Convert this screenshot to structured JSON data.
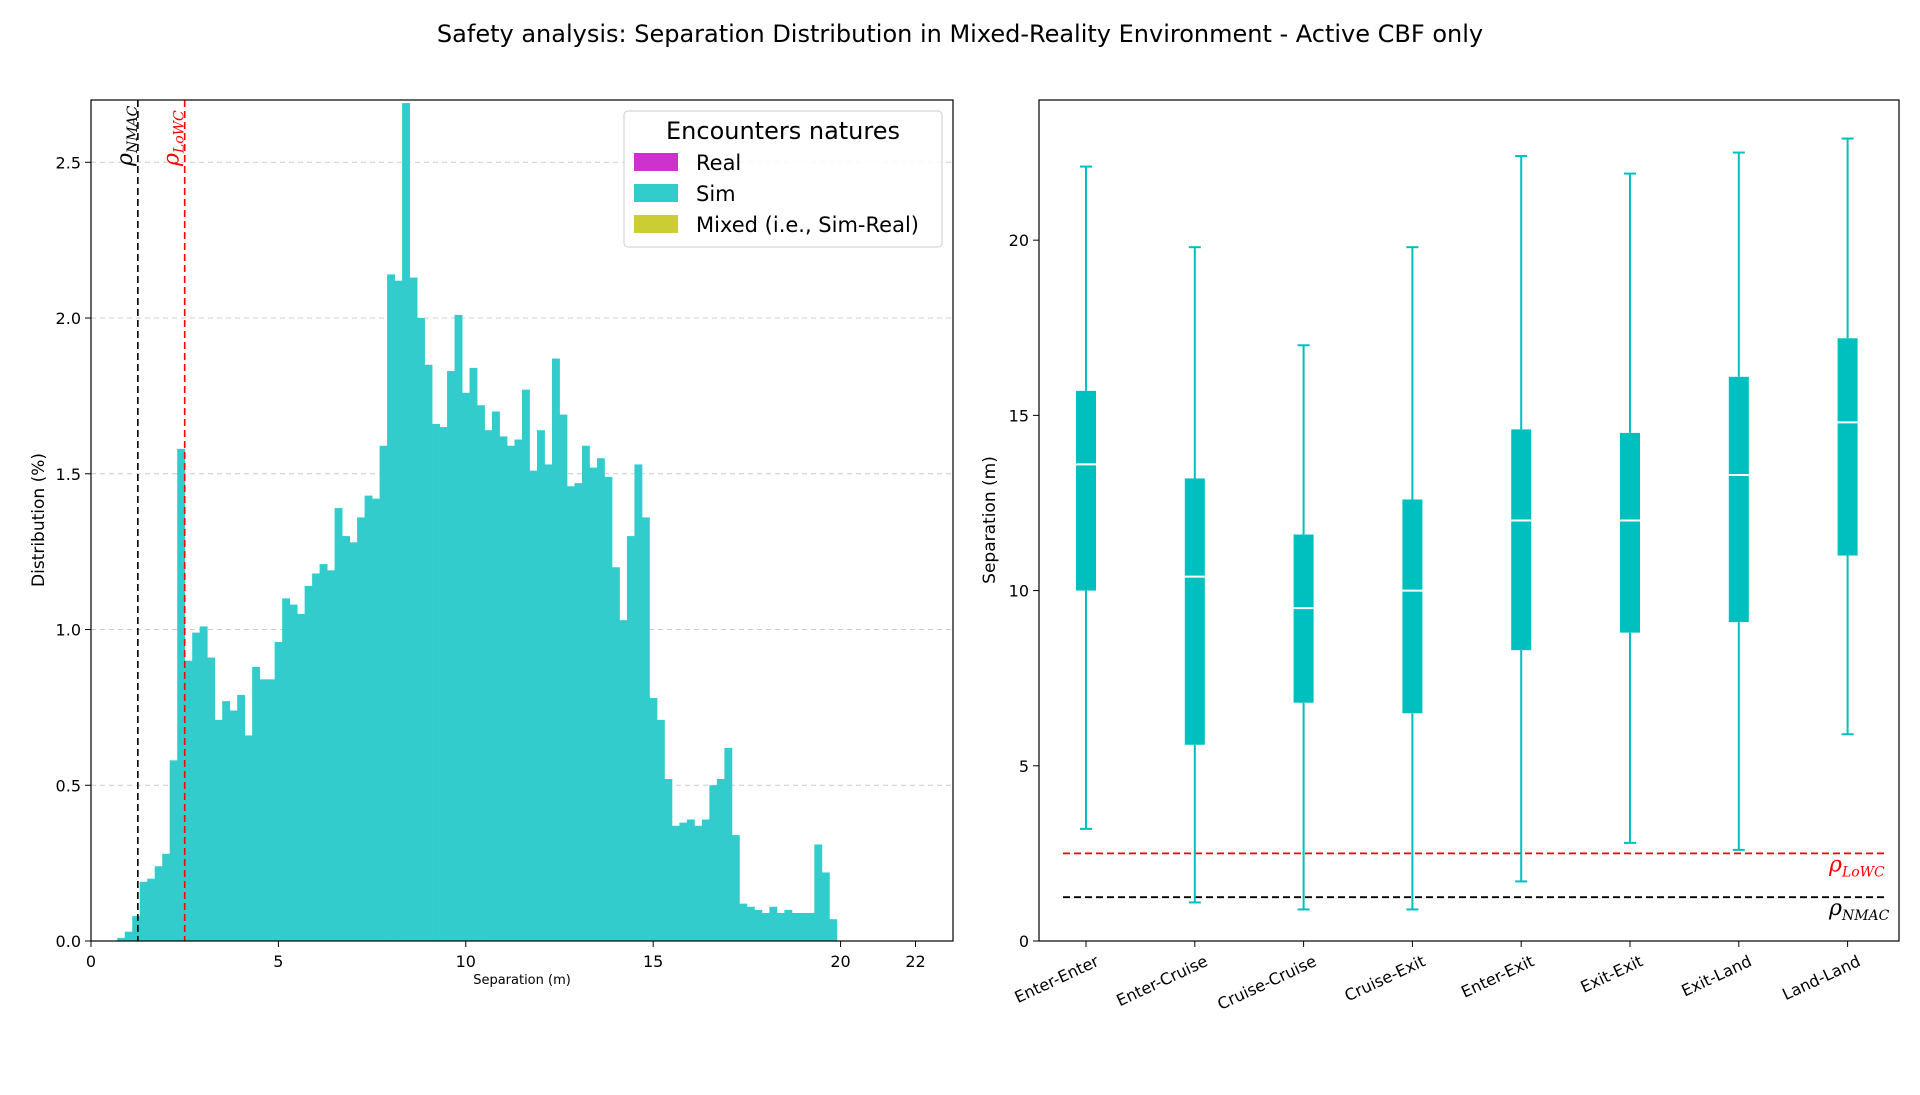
{
  "title": "Safety analysis: Separation Distribution in Mixed-Reality Environment - Active CBF only",
  "colors": {
    "real": "#cc33cc",
    "sim": "#33cccc",
    "mixed": "#cccc33",
    "box": "#00bfbf",
    "lowc": "#ff0000",
    "nmac": "#000000"
  },
  "chart_data": [
    {
      "type": "bar",
      "xlabel": "Separation (m)",
      "ylabel": "Distribution (%)",
      "xlim": [
        0,
        23
      ],
      "ylim": [
        0,
        2.7
      ],
      "xticks": [
        0,
        5,
        10,
        15,
        20,
        22
      ],
      "yticks": [
        "0.0",
        "0.5",
        "1.0",
        "1.5",
        "2.0",
        "2.5"
      ],
      "grid": "y-dashed",
      "bin_width": 0.2,
      "bin_start": 0.7,
      "values": [
        0.01,
        0.03,
        0.08,
        0.19,
        0.2,
        0.24,
        0.28,
        0.58,
        1.58,
        0.9,
        0.99,
        1.01,
        0.91,
        0.71,
        0.77,
        0.74,
        0.79,
        0.66,
        0.88,
        0.84,
        0.84,
        0.96,
        1.1,
        1.08,
        1.05,
        1.14,
        1.18,
        1.21,
        1.19,
        1.39,
        1.3,
        1.28,
        1.36,
        1.43,
        1.42,
        1.59,
        2.14,
        2.12,
        2.69,
        2.13,
        2.0,
        1.85,
        1.66,
        1.65,
        1.83,
        2.01,
        1.76,
        1.84,
        1.72,
        1.64,
        1.7,
        1.62,
        1.59,
        1.61,
        1.77,
        1.51,
        1.64,
        1.53,
        1.87,
        1.69,
        1.46,
        1.47,
        1.59,
        1.52,
        1.55,
        1.49,
        1.2,
        1.03,
        1.3,
        1.53,
        1.36,
        0.78,
        0.71,
        0.52,
        0.37,
        0.38,
        0.39,
        0.37,
        0.39,
        0.5,
        0.52,
        0.62,
        0.34,
        0.12,
        0.11,
        0.1,
        0.09,
        0.11,
        0.09,
        0.1,
        0.09,
        0.09,
        0.09,
        0.31,
        0.22,
        0.07
      ],
      "legend": {
        "title": "Encounters natures",
        "position": "top-right",
        "entries": [
          "Real",
          "Sim",
          "Mixed (i.e., Sim-Real)"
        ]
      },
      "ref_lines": [
        {
          "name": "NMAC",
          "label": "ρ",
          "sub": "NMAC",
          "x": 1.25
        },
        {
          "name": "LoWC",
          "label": "ρ",
          "sub": "LoWC",
          "x": 2.5
        }
      ]
    },
    {
      "type": "box",
      "ylabel": "Separation (m)",
      "ylim": [
        0,
        24
      ],
      "yticks": [
        0,
        5,
        10,
        15,
        20
      ],
      "categories": [
        "Enter-Enter",
        "Enter-Cruise",
        "Cruise-Cruise",
        "Cruise-Exit",
        "Enter-Exit",
        "Exit-Exit",
        "Exit-Land",
        "Land-Land"
      ],
      "boxes": [
        {
          "whislo": 3.2,
          "q1": 10.0,
          "med": 13.6,
          "q3": 15.7,
          "whishi": 22.1
        },
        {
          "whislo": 1.1,
          "q1": 5.6,
          "med": 10.4,
          "q3": 13.2,
          "whishi": 19.8
        },
        {
          "whislo": 0.9,
          "q1": 6.8,
          "med": 9.5,
          "q3": 11.6,
          "whishi": 17.0
        },
        {
          "whislo": 0.9,
          "q1": 6.5,
          "med": 10.0,
          "q3": 12.6,
          "whishi": 19.8
        },
        {
          "whislo": 1.7,
          "q1": 8.3,
          "med": 12.0,
          "q3": 14.6,
          "whishi": 22.4
        },
        {
          "whislo": 2.8,
          "q1": 8.8,
          "med": 12.0,
          "q3": 14.5,
          "whishi": 21.9
        },
        {
          "whislo": 2.6,
          "q1": 9.1,
          "med": 13.3,
          "q3": 16.1,
          "whishi": 22.5
        },
        {
          "whislo": 5.9,
          "q1": 11.0,
          "med": 14.8,
          "q3": 17.2,
          "whishi": 22.9
        }
      ],
      "ref_lines": [
        {
          "name": "LoWC",
          "label": "ρ",
          "sub": "LoWC",
          "y": 2.5
        },
        {
          "name": "NMAC",
          "label": "ρ",
          "sub": "NMAC",
          "y": 1.25
        }
      ]
    }
  ]
}
